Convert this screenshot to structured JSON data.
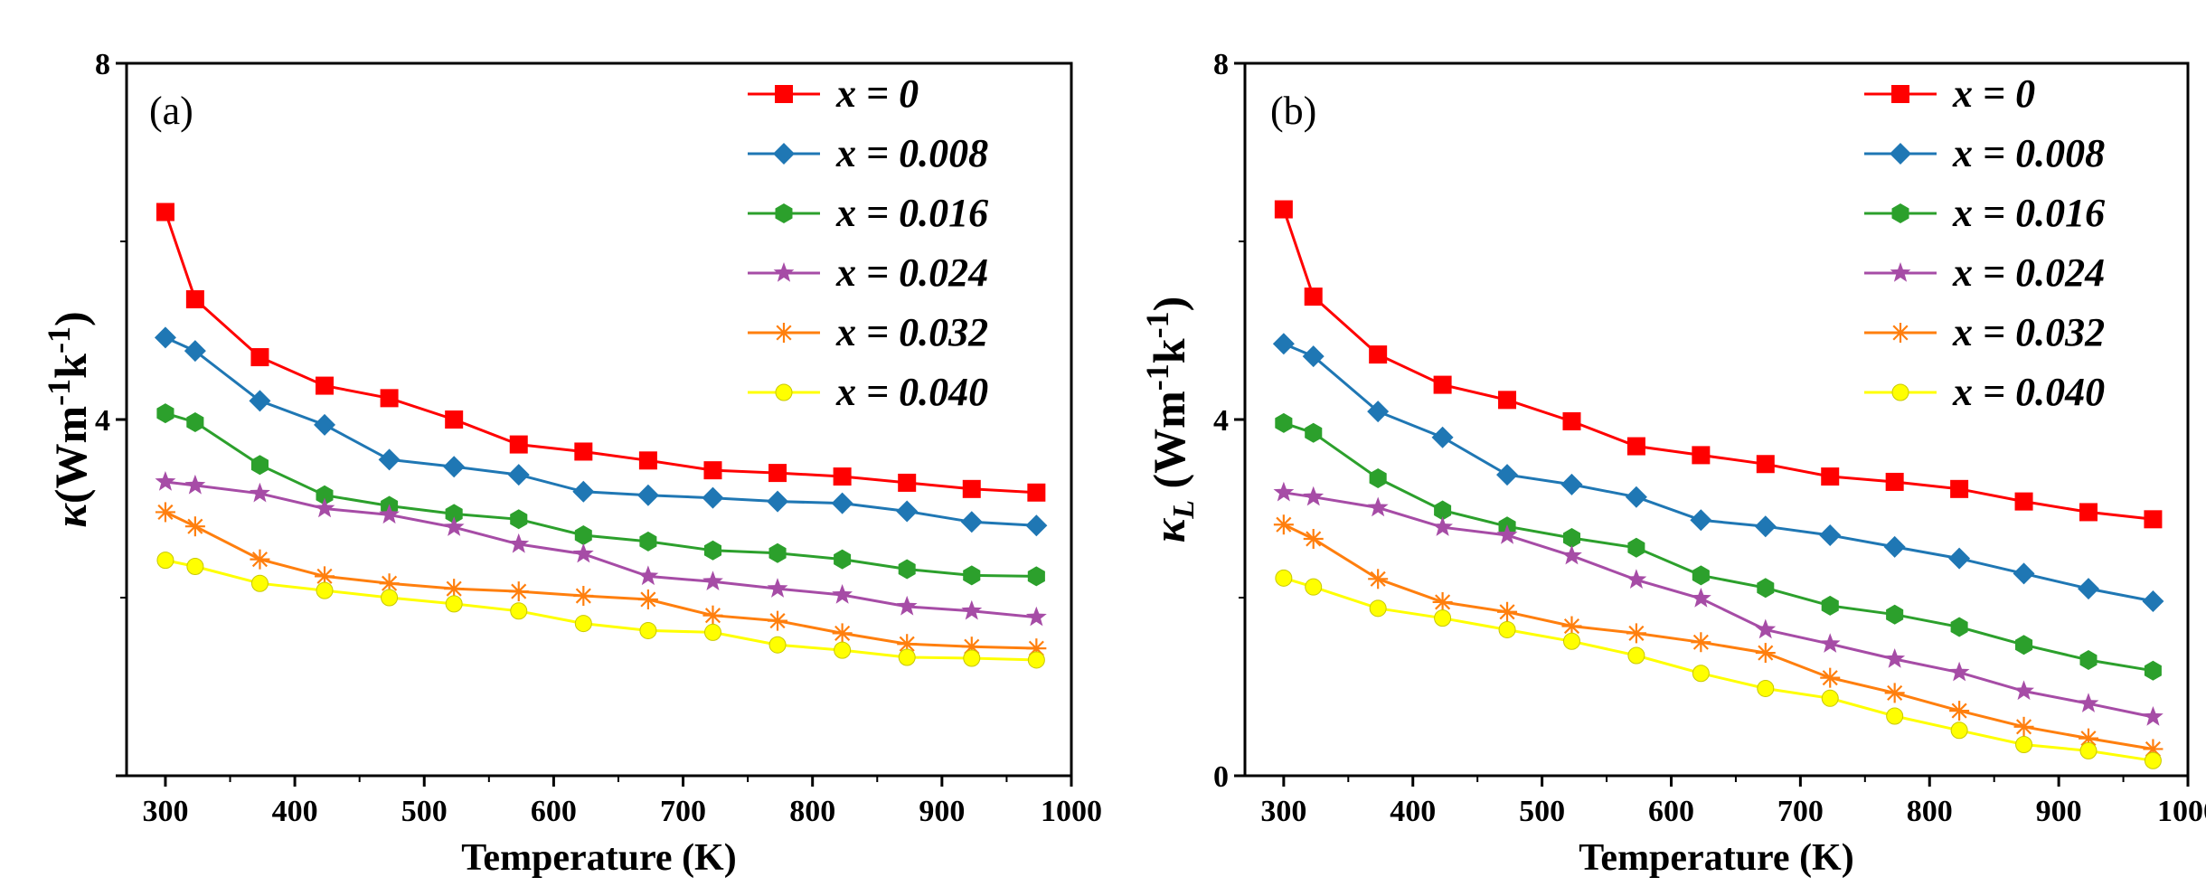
{
  "chart_data": [
    {
      "type": "line",
      "panel_label": "(a)",
      "xlabel": "Temperature (K)",
      "ylabel_symbol": "κ",
      "ylabel_sub": "",
      "ylabel_unit": "(Wm",
      "ylabel_exp1": "-1",
      "ylabel_k": "k",
      "ylabel_exp2": "-1",
      "ylabel_close": ")",
      "xlim": [
        270,
        1000
      ],
      "ylim": [
        0,
        8
      ],
      "xticks": [
        300,
        400,
        500,
        600,
        700,
        800,
        900,
        1000
      ],
      "yticks": [
        4,
        8
      ],
      "x": [
        300,
        323,
        373,
        423,
        473,
        523,
        573,
        623,
        673,
        723,
        773,
        823,
        873,
        923,
        973
      ],
      "series": [
        {
          "name": "x = 0",
          "marker": "square",
          "color": "#ff0000",
          "values": [
            6.33,
            5.35,
            4.7,
            4.38,
            4.24,
            4.0,
            3.72,
            3.64,
            3.54,
            3.43,
            3.4,
            3.36,
            3.29,
            3.22,
            3.18
          ]
        },
        {
          "name": "x = 0.008",
          "marker": "diamond",
          "color": "#1f77b4",
          "values": [
            4.92,
            4.77,
            4.21,
            3.94,
            3.55,
            3.47,
            3.38,
            3.19,
            3.15,
            3.12,
            3.08,
            3.06,
            2.97,
            2.85,
            2.81
          ]
        },
        {
          "name": "x = 0.016",
          "marker": "hexagon",
          "color": "#2ca02c",
          "values": [
            4.07,
            3.97,
            3.49,
            3.15,
            3.03,
            2.94,
            2.88,
            2.7,
            2.63,
            2.53,
            2.5,
            2.43,
            2.32,
            2.25,
            2.24
          ]
        },
        {
          "name": "x = 0.024",
          "marker": "star",
          "color": "#a64ca6",
          "values": [
            3.3,
            3.26,
            3.17,
            3.0,
            2.93,
            2.79,
            2.6,
            2.49,
            2.24,
            2.18,
            2.1,
            2.03,
            1.9,
            1.85,
            1.78
          ]
        },
        {
          "name": "x = 0.032",
          "marker": "asterisk",
          "color": "#ff7f0e",
          "values": [
            2.96,
            2.8,
            2.43,
            2.24,
            2.16,
            2.1,
            2.07,
            2.02,
            1.98,
            1.8,
            1.74,
            1.6,
            1.48,
            1.45,
            1.43
          ]
        },
        {
          "name": "x = 0.040",
          "marker": "circle",
          "color": "#ffff00",
          "values": [
            2.42,
            2.35,
            2.16,
            2.08,
            2.0,
            1.93,
            1.85,
            1.71,
            1.63,
            1.61,
            1.47,
            1.41,
            1.33,
            1.32,
            1.3
          ]
        }
      ]
    },
    {
      "type": "line",
      "panel_label": "(b)",
      "xlabel": "Temperature (K)",
      "ylabel_symbol": "κ",
      "ylabel_sub": "L",
      "ylabel_unit": "(Wm",
      "ylabel_exp1": "-1",
      "ylabel_k": "k",
      "ylabel_exp2": "-1",
      "ylabel_close": ")",
      "xlim": [
        270,
        1000
      ],
      "ylim": [
        0,
        8
      ],
      "xticks": [
        300,
        400,
        500,
        600,
        700,
        800,
        900,
        1000
      ],
      "yticks": [
        0,
        4,
        8
      ],
      "x": [
        300,
        323,
        373,
        423,
        473,
        523,
        573,
        623,
        673,
        723,
        773,
        823,
        873,
        923,
        973
      ],
      "series": [
        {
          "name": "x = 0",
          "marker": "square",
          "color": "#ff0000",
          "values": [
            6.36,
            5.38,
            4.73,
            4.39,
            4.22,
            3.98,
            3.7,
            3.6,
            3.5,
            3.36,
            3.3,
            3.22,
            3.08,
            2.96,
            2.88
          ]
        },
        {
          "name": "x = 0.008",
          "marker": "diamond",
          "color": "#1f77b4",
          "values": [
            4.85,
            4.71,
            4.09,
            3.8,
            3.38,
            3.27,
            3.13,
            2.87,
            2.8,
            2.7,
            2.57,
            2.44,
            2.27,
            2.1,
            1.96
          ]
        },
        {
          "name": "x = 0.016",
          "marker": "hexagon",
          "color": "#2ca02c",
          "values": [
            3.96,
            3.85,
            3.34,
            2.98,
            2.8,
            2.67,
            2.56,
            2.25,
            2.11,
            1.91,
            1.81,
            1.67,
            1.47,
            1.3,
            1.18
          ]
        },
        {
          "name": "x = 0.024",
          "marker": "star",
          "color": "#a64ca6",
          "values": [
            3.18,
            3.13,
            3.01,
            2.79,
            2.7,
            2.47,
            2.2,
            1.99,
            1.64,
            1.48,
            1.31,
            1.16,
            0.95,
            0.81,
            0.66
          ]
        },
        {
          "name": "x = 0.032",
          "marker": "asterisk",
          "color": "#ff7f0e",
          "values": [
            2.82,
            2.66,
            2.21,
            1.95,
            1.84,
            1.68,
            1.6,
            1.5,
            1.38,
            1.1,
            0.93,
            0.73,
            0.55,
            0.42,
            0.3
          ]
        },
        {
          "name": "x = 0.040",
          "marker": "circle",
          "color": "#ffff00",
          "values": [
            2.22,
            2.12,
            1.88,
            1.77,
            1.64,
            1.51,
            1.35,
            1.15,
            0.98,
            0.87,
            0.67,
            0.51,
            0.35,
            0.28,
            0.17
          ]
        }
      ]
    }
  ]
}
